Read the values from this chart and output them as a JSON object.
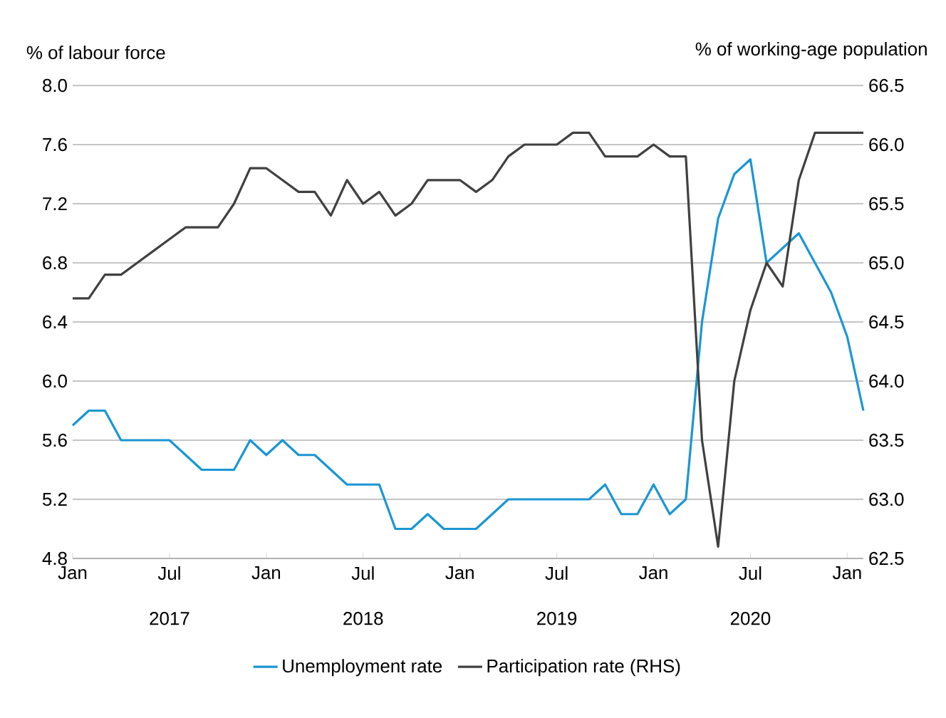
{
  "chart_data": {
    "type": "line",
    "ylabel": "% of labour force",
    "y2label": "% of working-age population",
    "x": [
      "2017-01",
      "2017-02",
      "2017-03",
      "2017-04",
      "2017-05",
      "2017-06",
      "2017-07",
      "2017-08",
      "2017-09",
      "2017-10",
      "2017-11",
      "2017-12",
      "2018-01",
      "2018-02",
      "2018-03",
      "2018-04",
      "2018-05",
      "2018-06",
      "2018-07",
      "2018-08",
      "2018-09",
      "2018-10",
      "2018-11",
      "2018-12",
      "2019-01",
      "2019-02",
      "2019-03",
      "2019-04",
      "2019-05",
      "2019-06",
      "2019-07",
      "2019-08",
      "2019-09",
      "2019-10",
      "2019-11",
      "2019-12",
      "2020-01",
      "2020-02",
      "2020-03",
      "2020-04",
      "2020-05",
      "2020-06",
      "2020-07",
      "2020-08",
      "2020-09",
      "2020-10",
      "2020-11",
      "2020-12",
      "2021-01",
      "2021-02"
    ],
    "series": [
      {
        "name": "Unemployment rate",
        "color": "#1a96d4",
        "values": [
          5.7,
          5.8,
          5.8,
          5.6,
          5.6,
          5.6,
          5.6,
          5.5,
          5.4,
          5.4,
          5.4,
          5.6,
          5.5,
          5.6,
          5.5,
          5.5,
          5.4,
          5.3,
          5.3,
          5.3,
          5.0,
          5.0,
          5.1,
          5.0,
          5.0,
          5.0,
          5.1,
          5.2,
          5.2,
          5.2,
          5.2,
          5.2,
          5.2,
          5.3,
          5.1,
          5.1,
          5.3,
          5.1,
          5.2,
          6.4,
          7.1,
          7.4,
          7.5,
          6.8,
          6.9,
          7.0,
          6.8,
          6.6,
          6.3,
          5.8
        ]
      },
      {
        "name": "Participation rate (RHS)",
        "color": "#404040",
        "axis": "y2",
        "values": [
          64.7,
          64.7,
          64.9,
          64.9,
          65.0,
          65.1,
          65.2,
          65.3,
          65.3,
          65.3,
          65.5,
          65.8,
          65.8,
          65.7,
          65.6,
          65.6,
          65.4,
          65.7,
          65.5,
          65.6,
          65.4,
          65.5,
          65.7,
          65.7,
          65.7,
          65.6,
          65.7,
          65.9,
          66.0,
          66.0,
          66.0,
          66.1,
          66.1,
          65.9,
          65.9,
          65.9,
          66.0,
          65.9,
          65.9,
          63.5,
          62.6,
          64.0,
          64.6,
          65.0,
          64.8,
          65.7,
          66.1,
          66.1,
          66.1,
          66.1
        ]
      }
    ],
    "xlim": [
      "2017-01",
      "2021-02"
    ],
    "xticks": [
      {
        "value": "2017-01",
        "label": "Jan"
      },
      {
        "value": "2017-07",
        "label": "Jul"
      },
      {
        "value": "2018-01",
        "label": "Jan"
      },
      {
        "value": "2018-07",
        "label": "Jul"
      },
      {
        "value": "2019-01",
        "label": "Jan"
      },
      {
        "value": "2019-07",
        "label": "Jul"
      },
      {
        "value": "2020-01",
        "label": "Jan"
      },
      {
        "value": "2020-07",
        "label": "Jul"
      },
      {
        "value": "2021-01",
        "label": "Jan"
      }
    ],
    "annotations": [
      "2017",
      "2018",
      "2019",
      "2020"
    ],
    "ylim": [
      4.8,
      8.0
    ],
    "yticks": [
      4.8,
      5.2,
      5.6,
      {
        "value": 6,
        "label": "6.0"
      },
      6.4,
      6.8,
      7.2,
      7.6,
      {
        "value": 8,
        "label": "8.0"
      }
    ],
    "y2lim": [
      62.5,
      66.5
    ],
    "y2ticks": [
      62.5,
      {
        "value": 63,
        "label": "63.0"
      },
      63.5,
      {
        "value": 64,
        "label": "64.0"
      },
      64.5,
      {
        "value": 65,
        "label": "65.0"
      },
      65.5,
      {
        "value": 66,
        "label": "66.0"
      },
      66.5
    ],
    "grid": "y",
    "legend": "bottom",
    "line_style": "solid",
    "marker": "none"
  }
}
